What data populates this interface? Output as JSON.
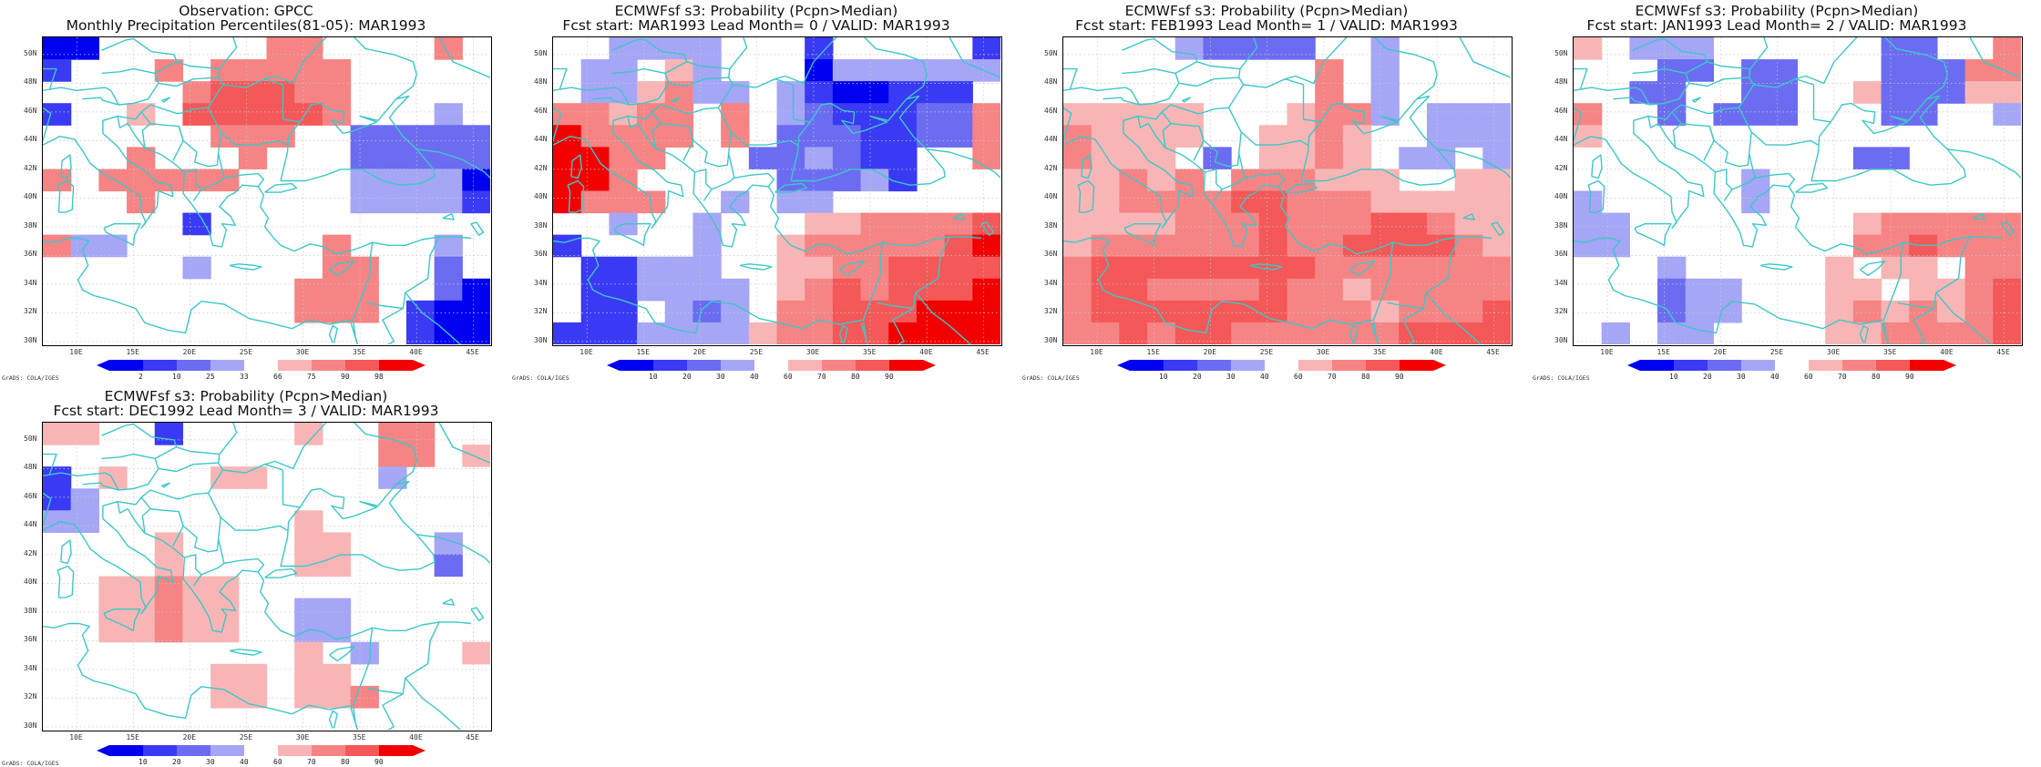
{
  "colors": {
    "coast": "#3cc8c8",
    "grid": "#c8c8c8",
    "palette": [
      "#0000f0",
      "#3a3af5",
      "#6c6cf2",
      "#a6a6f7",
      "#ffffff",
      "#f9b5b5",
      "#f68484",
      "#f45858",
      "#f20000"
    ]
  },
  "axes": {
    "lat_labels": [
      "50N",
      "48N",
      "46N",
      "44N",
      "42N",
      "40N",
      "38N",
      "36N",
      "34N",
      "32N",
      "30N"
    ],
    "lon_labels": [
      "10E",
      "15E",
      "20E",
      "25E",
      "30E",
      "35E",
      "40E",
      "45E"
    ]
  },
  "credit": "GrADS: COLA/IGES",
  "panels": [
    {
      "title1": "Observation: GPCC",
      "title2": "Monthly Precipitation Percentiles(81-05): MAR1993",
      "colorbar_labels": [
        "2",
        "10",
        "25",
        "33",
        "66",
        "75",
        "90",
        "98"
      ],
      "grid": [
        [
          0,
          0,
          4,
          4,
          4,
          4,
          4,
          4,
          6,
          6,
          4,
          4,
          4,
          4,
          6,
          4
        ],
        [
          1,
          4,
          4,
          4,
          6,
          4,
          6,
          6,
          6,
          6,
          6,
          4,
          4,
          4,
          4,
          4
        ],
        [
          4,
          4,
          4,
          4,
          4,
          6,
          7,
          7,
          7,
          6,
          6,
          4,
          4,
          4,
          4,
          4
        ],
        [
          1,
          4,
          4,
          5,
          4,
          7,
          7,
          7,
          7,
          7,
          6,
          4,
          4,
          4,
          3,
          4
        ],
        [
          4,
          4,
          4,
          4,
          4,
          4,
          6,
          6,
          6,
          4,
          4,
          2,
          2,
          2,
          2,
          2
        ],
        [
          4,
          4,
          4,
          6,
          4,
          4,
          4,
          6,
          4,
          4,
          4,
          2,
          2,
          2,
          2,
          2
        ],
        [
          6,
          4,
          6,
          6,
          6,
          6,
          6,
          4,
          4,
          4,
          4,
          3,
          3,
          3,
          3,
          0
        ],
        [
          4,
          4,
          4,
          6,
          4,
          4,
          4,
          4,
          4,
          4,
          4,
          3,
          3,
          3,
          3,
          1
        ],
        [
          4,
          4,
          4,
          4,
          4,
          1,
          4,
          4,
          4,
          4,
          4,
          4,
          4,
          4,
          4,
          4
        ],
        [
          6,
          3,
          3,
          4,
          4,
          4,
          4,
          4,
          4,
          4,
          6,
          4,
          4,
          4,
          3,
          4
        ],
        [
          4,
          4,
          4,
          4,
          4,
          3,
          4,
          4,
          4,
          4,
          6,
          6,
          4,
          4,
          2,
          4
        ],
        [
          4,
          4,
          4,
          4,
          4,
          4,
          4,
          4,
          4,
          6,
          6,
          6,
          4,
          4,
          2,
          0
        ],
        [
          4,
          4,
          4,
          4,
          4,
          4,
          4,
          4,
          4,
          6,
          6,
          6,
          4,
          1,
          0,
          0
        ],
        [
          4,
          4,
          4,
          4,
          4,
          4,
          4,
          4,
          4,
          4,
          4,
          4,
          4,
          1,
          0,
          0
        ]
      ]
    },
    {
      "title1": "ECMWFsf s3: Probability (Pcpn>Median)",
      "title2": "Fcst start: MAR1993   Lead Month= 0 / VALID: MAR1993",
      "colorbar_labels": [
        "10",
        "20",
        "30",
        "40",
        "60",
        "70",
        "80",
        "90"
      ],
      "grid": [
        [
          4,
          4,
          3,
          3,
          3,
          3,
          4,
          4,
          4,
          1,
          4,
          4,
          4,
          4,
          4,
          1
        ],
        [
          4,
          3,
          3,
          4,
          5,
          3,
          4,
          4,
          4,
          0,
          3,
          3,
          3,
          3,
          3,
          3
        ],
        [
          4,
          3,
          3,
          5,
          6,
          3,
          3,
          4,
          3,
          1,
          0,
          0,
          1,
          1,
          1,
          4
        ],
        [
          6,
          6,
          5,
          6,
          6,
          4,
          6,
          4,
          3,
          2,
          1,
          1,
          1,
          2,
          2,
          6
        ],
        [
          8,
          6,
          6,
          6,
          6,
          4,
          6,
          4,
          2,
          2,
          2,
          1,
          1,
          2,
          2,
          6
        ],
        [
          8,
          8,
          6,
          6,
          4,
          4,
          4,
          2,
          2,
          3,
          2,
          1,
          1,
          4,
          4,
          6
        ],
        [
          8,
          8,
          6,
          4,
          4,
          4,
          4,
          4,
          2,
          2,
          2,
          3,
          1,
          4,
          4,
          4
        ],
        [
          8,
          6,
          6,
          6,
          4,
          4,
          3,
          4,
          3,
          3,
          4,
          4,
          4,
          4,
          4,
          4
        ],
        [
          4,
          4,
          3,
          4,
          4,
          3,
          4,
          4,
          4,
          5,
          5,
          6,
          6,
          6,
          6,
          7
        ],
        [
          1,
          4,
          4,
          4,
          4,
          3,
          4,
          4,
          5,
          6,
          6,
          6,
          6,
          6,
          7,
          8
        ],
        [
          4,
          1,
          1,
          3,
          3,
          3,
          4,
          4,
          5,
          5,
          6,
          6,
          7,
          7,
          7,
          7
        ],
        [
          4,
          1,
          1,
          3,
          3,
          3,
          3,
          4,
          5,
          6,
          7,
          6,
          7,
          7,
          7,
          8
        ],
        [
          4,
          1,
          1,
          4,
          3,
          2,
          3,
          4,
          6,
          6,
          7,
          7,
          7,
          8,
          8,
          8
        ],
        [
          1,
          1,
          1,
          3,
          3,
          3,
          3,
          5,
          6,
          6,
          7,
          7,
          8,
          8,
          8,
          8
        ]
      ]
    },
    {
      "title1": "ECMWFsf s3: Probability (Pcpn>Median)",
      "title2": "Fcst start: FEB1993   Lead Month= 1 / VALID: MAR1993",
      "colorbar_labels": [
        "10",
        "20",
        "30",
        "40",
        "60",
        "70",
        "80",
        "90"
      ],
      "grid": [
        [
          4,
          4,
          4,
          4,
          3,
          2,
          2,
          2,
          2,
          4,
          4,
          3,
          4,
          4,
          4,
          4
        ],
        [
          4,
          4,
          4,
          4,
          4,
          4,
          4,
          4,
          4,
          6,
          4,
          3,
          4,
          4,
          4,
          4
        ],
        [
          4,
          4,
          4,
          4,
          4,
          4,
          4,
          4,
          4,
          6,
          4,
          3,
          4,
          4,
          4,
          4
        ],
        [
          5,
          5,
          5,
          5,
          5,
          4,
          4,
          4,
          5,
          6,
          6,
          3,
          4,
          3,
          3,
          3
        ],
        [
          6,
          5,
          5,
          5,
          5,
          4,
          4,
          5,
          5,
          6,
          5,
          4,
          4,
          3,
          3,
          3
        ],
        [
          6,
          5,
          5,
          5,
          4,
          2,
          4,
          5,
          5,
          6,
          5,
          4,
          3,
          3,
          4,
          3
        ],
        [
          5,
          5,
          6,
          5,
          6,
          4,
          6,
          6,
          6,
          5,
          5,
          5,
          4,
          4,
          5,
          5
        ],
        [
          5,
          5,
          6,
          6,
          6,
          6,
          7,
          7,
          6,
          6,
          6,
          5,
          5,
          5,
          5,
          5
        ],
        [
          5,
          5,
          5,
          5,
          6,
          6,
          6,
          7,
          6,
          6,
          6,
          7,
          7,
          6,
          5,
          5
        ],
        [
          5,
          6,
          6,
          6,
          6,
          6,
          6,
          7,
          6,
          6,
          7,
          7,
          7,
          7,
          6,
          5
        ],
        [
          6,
          7,
          7,
          7,
          7,
          7,
          7,
          7,
          7,
          6,
          6,
          6,
          6,
          6,
          6,
          6
        ],
        [
          6,
          7,
          7,
          6,
          6,
          6,
          6,
          7,
          6,
          6,
          5,
          6,
          6,
          6,
          6,
          6
        ],
        [
          6,
          7,
          7,
          7,
          7,
          7,
          7,
          7,
          6,
          6,
          6,
          5,
          6,
          6,
          6,
          7
        ],
        [
          6,
          6,
          7,
          6,
          7,
          7,
          6,
          6,
          6,
          6,
          6,
          6,
          7,
          7,
          7,
          7
        ]
      ]
    },
    {
      "title1": "ECMWFsf s3: Probability (Pcpn>Median)",
      "title2": "Fcst start: JAN1993   Lead Month= 2 / VALID: MAR1993",
      "colorbar_labels": [
        "10",
        "20",
        "30",
        "40",
        "60",
        "70",
        "80",
        "90"
      ],
      "grid": [
        [
          5,
          4,
          3,
          3,
          3,
          4,
          4,
          4,
          4,
          4,
          4,
          2,
          2,
          4,
          4,
          6
        ],
        [
          4,
          4,
          4,
          2,
          2,
          4,
          2,
          2,
          4,
          4,
          4,
          2,
          2,
          2,
          6,
          6
        ],
        [
          4,
          4,
          2,
          2,
          4,
          4,
          2,
          2,
          4,
          4,
          5,
          2,
          2,
          2,
          5,
          5
        ],
        [
          6,
          4,
          4,
          2,
          4,
          2,
          2,
          2,
          4,
          4,
          4,
          2,
          2,
          4,
          4,
          3
        ],
        [
          5,
          4,
          4,
          4,
          4,
          4,
          4,
          4,
          4,
          4,
          4,
          4,
          4,
          4,
          4,
          4
        ],
        [
          4,
          4,
          4,
          4,
          4,
          4,
          4,
          4,
          4,
          4,
          2,
          2,
          4,
          4,
          4,
          4
        ],
        [
          4,
          4,
          4,
          4,
          4,
          4,
          3,
          4,
          4,
          4,
          4,
          4,
          4,
          4,
          4,
          4
        ],
        [
          3,
          4,
          4,
          4,
          4,
          4,
          3,
          4,
          4,
          4,
          4,
          4,
          4,
          4,
          4,
          4
        ],
        [
          3,
          3,
          4,
          4,
          4,
          4,
          4,
          4,
          4,
          4,
          5,
          6,
          6,
          6,
          6,
          6
        ],
        [
          3,
          3,
          4,
          4,
          4,
          4,
          4,
          4,
          4,
          4,
          6,
          6,
          7,
          6,
          6,
          6
        ],
        [
          4,
          4,
          4,
          3,
          4,
          4,
          4,
          4,
          4,
          5,
          4,
          5,
          5,
          4,
          6,
          6
        ],
        [
          4,
          4,
          4,
          2,
          3,
          3,
          4,
          4,
          4,
          5,
          5,
          4,
          5,
          5,
          6,
          7
        ],
        [
          4,
          4,
          4,
          2,
          3,
          3,
          4,
          4,
          4,
          5,
          6,
          5,
          6,
          5,
          6,
          7
        ],
        [
          4,
          3,
          4,
          3,
          3,
          4,
          4,
          4,
          4,
          5,
          5,
          6,
          6,
          6,
          6,
          7
        ]
      ]
    },
    {
      "title1": "ECMWFsf s3: Probability (Pcpn>Median)",
      "title2": "Fcst start: DEC1992   Lead Month= 3 / VALID: MAR1993",
      "colorbar_labels": [
        "10",
        "20",
        "30",
        "40",
        "60",
        "70",
        "80",
        "90"
      ],
      "grid": [
        [
          5,
          5,
          4,
          4,
          1,
          4,
          4,
          4,
          4,
          5,
          4,
          4,
          6,
          6,
          4,
          4
        ],
        [
          4,
          4,
          4,
          4,
          4,
          4,
          4,
          4,
          4,
          4,
          4,
          4,
          6,
          6,
          4,
          5
        ],
        [
          1,
          4,
          5,
          4,
          4,
          4,
          5,
          5,
          4,
          4,
          4,
          4,
          3,
          4,
          4,
          4
        ],
        [
          1,
          3,
          4,
          4,
          4,
          4,
          4,
          4,
          4,
          4,
          4,
          4,
          4,
          4,
          4,
          4
        ],
        [
          3,
          3,
          4,
          4,
          4,
          4,
          4,
          4,
          4,
          5,
          4,
          4,
          4,
          4,
          4,
          4
        ],
        [
          4,
          4,
          4,
          4,
          5,
          4,
          4,
          4,
          4,
          5,
          5,
          4,
          4,
          4,
          3,
          4
        ],
        [
          4,
          4,
          4,
          4,
          5,
          4,
          4,
          4,
          4,
          5,
          5,
          4,
          4,
          4,
          2,
          4
        ],
        [
          4,
          4,
          5,
          5,
          6,
          5,
          5,
          4,
          4,
          4,
          4,
          4,
          4,
          4,
          4,
          4
        ],
        [
          4,
          4,
          5,
          5,
          6,
          5,
          5,
          4,
          4,
          3,
          3,
          4,
          4,
          4,
          4,
          4
        ],
        [
          4,
          4,
          5,
          5,
          6,
          5,
          5,
          4,
          4,
          3,
          3,
          4,
          4,
          4,
          4,
          4
        ],
        [
          4,
          4,
          4,
          4,
          4,
          4,
          4,
          4,
          4,
          5,
          4,
          3,
          4,
          4,
          4,
          5
        ],
        [
          4,
          4,
          4,
          4,
          4,
          4,
          5,
          5,
          4,
          5,
          5,
          4,
          4,
          4,
          4,
          4
        ],
        [
          4,
          4,
          4,
          4,
          4,
          4,
          5,
          5,
          4,
          5,
          5,
          6,
          4,
          4,
          4,
          4
        ],
        [
          4,
          4,
          4,
          4,
          4,
          4,
          4,
          4,
          4,
          4,
          4,
          4,
          4,
          4,
          4,
          4
        ]
      ]
    }
  ]
}
